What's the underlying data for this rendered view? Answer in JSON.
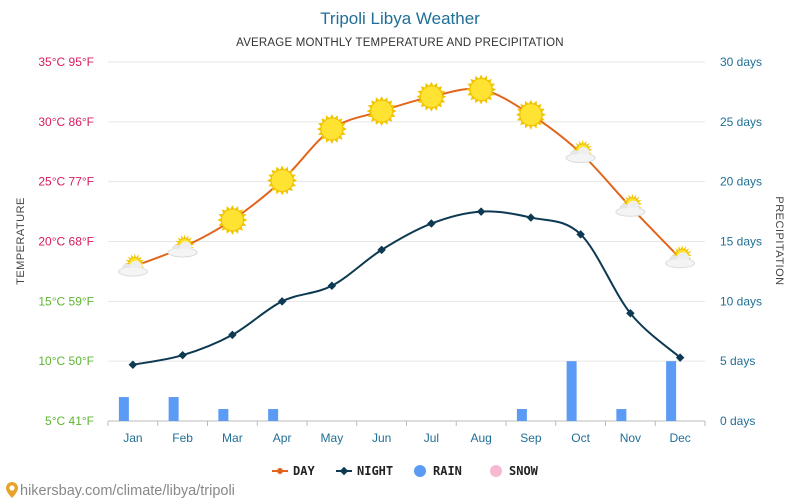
{
  "chart_data": {
    "type": "line",
    "title": "Tripoli Libya Weather",
    "subtitle": "AVERAGE MONTHLY TEMPERATURE AND PRECIPITATION",
    "categories": [
      "Jan",
      "Feb",
      "Mar",
      "Apr",
      "May",
      "Jun",
      "Jul",
      "Aug",
      "Sep",
      "Oct",
      "Nov",
      "Dec"
    ],
    "series": [
      {
        "name": "DAY",
        "type": "line",
        "axis": "left",
        "unit": "°C",
        "values": [
          17.9,
          19.5,
          21.8,
          25.1,
          29.4,
          30.9,
          32.1,
          32.7,
          30.6,
          27.4,
          22.9,
          18.6
        ],
        "color": "#e3641c"
      },
      {
        "name": "NIGHT",
        "type": "line",
        "axis": "left",
        "unit": "°C",
        "values": [
          9.7,
          10.5,
          12.2,
          15.0,
          16.3,
          19.3,
          21.5,
          22.5,
          22.0,
          20.6,
          14.0,
          10.3
        ],
        "color": "#0d3a52"
      },
      {
        "name": "RAIN",
        "type": "bar",
        "axis": "right",
        "unit": "days",
        "values": [
          2,
          2,
          1,
          1,
          0,
          0,
          0,
          0,
          1,
          5,
          1,
          5
        ],
        "color": "#5b9af5"
      },
      {
        "name": "SNOW",
        "type": "bar",
        "axis": "right",
        "unit": "days",
        "values": [
          0,
          0,
          0,
          0,
          0,
          0,
          0,
          0,
          0,
          0,
          0,
          0
        ],
        "color": "#f7b8d2"
      }
    ],
    "weather_icons": [
      "sun-cloud-icon",
      "sun-cloud-icon",
      "sun-icon",
      "sun-icon",
      "sun-icon",
      "sun-icon",
      "sun-icon",
      "sun-icon",
      "sun-icon",
      "sun-cloud-icon",
      "sun-cloud-icon",
      "sun-cloud-icon"
    ],
    "y_left": {
      "label": "TEMPERATURE",
      "ylim": [
        5,
        35
      ],
      "ticks": [
        {
          "value": 35,
          "label": "35°C 95°F",
          "color": "#d81b60"
        },
        {
          "value": 30,
          "label": "30°C 86°F",
          "color": "#d81b60"
        },
        {
          "value": 25,
          "label": "25°C 77°F",
          "color": "#d81b60"
        },
        {
          "value": 20,
          "label": "20°C 68°F",
          "color": "#d81b60"
        },
        {
          "value": 15,
          "label": "15°C 59°F",
          "color": "#5cb531"
        },
        {
          "value": 10,
          "label": "10°C 50°F",
          "color": "#5cb531"
        },
        {
          "value": 5,
          "label": "5°C 41°F",
          "color": "#5cb531"
        }
      ]
    },
    "y_right": {
      "label": "PRECIPITATION",
      "ylim": [
        0,
        30
      ],
      "ticks": [
        {
          "value": 30,
          "label": "30 days"
        },
        {
          "value": 25,
          "label": "25 days"
        },
        {
          "value": 20,
          "label": "20 days"
        },
        {
          "value": 15,
          "label": "15 days"
        },
        {
          "value": 10,
          "label": "10 days"
        },
        {
          "value": 5,
          "label": "5 days"
        },
        {
          "value": 0,
          "label": "0 days"
        }
      ]
    },
    "grid": true,
    "legend": {
      "position": "bottom-center",
      "items": [
        {
          "name": "DAY",
          "marker": "line-dot",
          "color": "#e3641c"
        },
        {
          "name": "NIGHT",
          "marker": "line-diamond",
          "color": "#0d3a52"
        },
        {
          "name": "RAIN",
          "marker": "circle",
          "color": "#5b9af5"
        },
        {
          "name": "SNOW",
          "marker": "circle",
          "color": "#f7b8d2"
        }
      ]
    }
  },
  "footer": {
    "text": "hikersbay.com/climate/libya/tripoli",
    "icon": "location-pin-icon"
  }
}
